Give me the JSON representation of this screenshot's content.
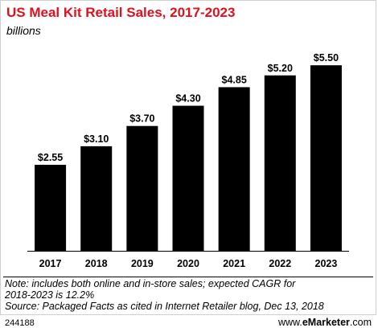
{
  "chart_data": {
    "type": "bar",
    "title": "US Meal Kit Retail Sales, 2017-2023",
    "subtitle": "billions",
    "categories": [
      "2017",
      "2018",
      "2019",
      "2020",
      "2021",
      "2022",
      "2023"
    ],
    "values": [
      2.55,
      3.1,
      3.7,
      4.3,
      4.85,
      5.2,
      5.5
    ],
    "value_labels": [
      "$2.55",
      "$3.10",
      "$3.70",
      "$4.30",
      "$4.85",
      "$5.20",
      "$5.50"
    ],
    "ylim": [
      0,
      6.1
    ],
    "grid": false,
    "bar_color": "#000000"
  },
  "note_lines": [
    "Note: includes both online and in-store sales; expected CAGR for",
    "2018-2023 is 12.2%",
    "Source: Packaged Facts as cited in Internet Retailer blog, Dec 13, 2018"
  ],
  "footer": {
    "chart_id": "244188",
    "brand_prefix": "www.",
    "brand_accent": "eMarketer",
    "brand_suffix": ".com"
  },
  "colors": {
    "title": "#e0101e",
    "bars": "#000000"
  }
}
